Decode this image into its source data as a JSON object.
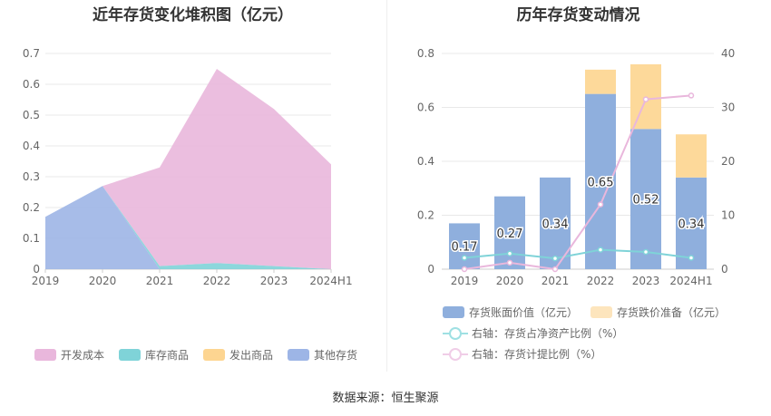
{
  "source": "数据来源：恒生聚源",
  "chart_data": [
    {
      "type": "area",
      "title": "近年存货变化堆积图（亿元）",
      "categories": [
        "2019",
        "2020",
        "2021",
        "2022",
        "2023",
        "2024H1"
      ],
      "ylim": [
        0,
        0.7
      ],
      "yticks": [
        "0",
        "0.1",
        "0.2",
        "0.3",
        "0.4",
        "0.5",
        "0.6",
        "0.7"
      ],
      "stacked": true,
      "series": [
        {
          "name": "开发成本",
          "color": "#e9b7dc",
          "values": [
            0,
            0,
            0.32,
            0.63,
            0.51,
            0.34
          ]
        },
        {
          "name": "库存商品",
          "color": "#7fd3d8",
          "values": [
            0,
            0,
            0.01,
            0.02,
            0.01,
            0
          ]
        },
        {
          "name": "发出商品",
          "color": "#fdd591",
          "values": [
            0,
            0,
            0,
            0,
            0,
            0
          ]
        },
        {
          "name": "其他存货",
          "color": "#9db5e6",
          "values": [
            0.17,
            0.27,
            0,
            0,
            0,
            0
          ]
        }
      ],
      "legend_position": "bottom"
    },
    {
      "type": "bar",
      "title": "历年存货变动情况",
      "categories": [
        "2019",
        "2020",
        "2021",
        "2022",
        "2023",
        "2024H1"
      ],
      "ylim": [
        0,
        0.8
      ],
      "yticks": [
        "0",
        "0.2",
        "0.4",
        "0.6",
        "0.8"
      ],
      "y2lim": [
        0,
        40
      ],
      "y2ticks": [
        "0",
        "10",
        "20",
        "30",
        "40"
      ],
      "stacked": true,
      "series": [
        {
          "name": "存货账面价值（亿元）",
          "color": "#8fafdd",
          "axis": "left",
          "type": "bar",
          "values": [
            0.17,
            0.27,
            0.34,
            0.65,
            0.52,
            0.34
          ],
          "labels": [
            "0.17",
            "0.27",
            "0.34",
            "0.65",
            "0.52",
            "0.34"
          ]
        },
        {
          "name": "存货跌价准备（亿元）",
          "color": "#fdd99a",
          "axis": "left",
          "type": "bar",
          "values": [
            0,
            0,
            0,
            0.09,
            0.24,
            0.16
          ]
        },
        {
          "name": "右轴：存货占净资产比例（%）",
          "color": "#7fd3d8",
          "axis": "right",
          "type": "line",
          "values": [
            2.1,
            2.9,
            2.0,
            3.6,
            3.2,
            2.1
          ]
        },
        {
          "name": "右轴：存货计提比例（%）",
          "color": "#e9b7dc",
          "axis": "right",
          "type": "line",
          "values": [
            0,
            1.2,
            0,
            12,
            31.5,
            32.2
          ]
        }
      ],
      "legend_position": "bottom"
    }
  ]
}
